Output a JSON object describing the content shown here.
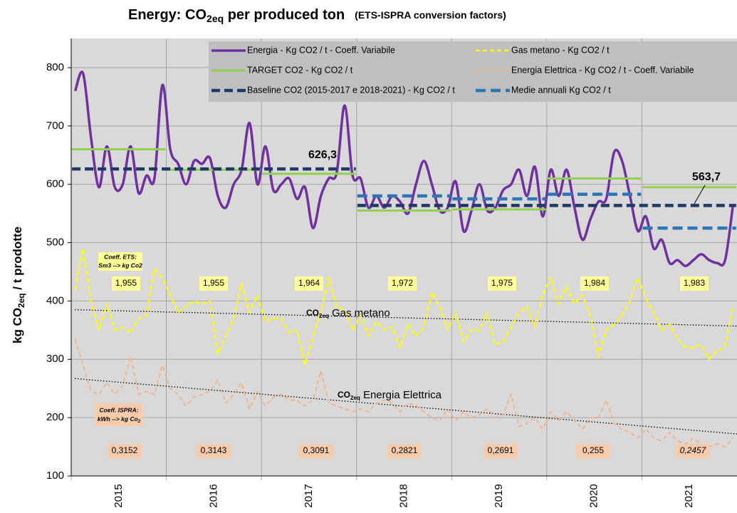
{
  "chart_data": {
    "type": "line",
    "title": [
      "Energy: CO",
      "2eq",
      " per produced ton"
    ],
    "subtitle": "(ETS-ISPRA conversion factors)",
    "y_label": [
      "kg CO",
      "2eq",
      " / t prodotte"
    ],
    "categories": [
      null,
      null,
      null,
      null,
      null,
      null,
      "2015",
      null,
      null,
      null,
      null,
      null,
      null,
      null,
      null,
      null,
      null,
      null,
      "2016",
      null,
      null,
      null,
      null,
      null,
      null,
      null,
      null,
      null,
      null,
      null,
      "2017",
      null,
      null,
      null,
      null,
      null,
      null,
      null,
      null,
      null,
      null,
      null,
      "2018",
      null,
      null,
      null,
      null,
      null,
      null,
      null,
      null,
      null,
      null,
      null,
      "2019",
      null,
      null,
      null,
      null,
      null,
      null,
      null,
      null,
      null,
      null,
      null,
      "2020",
      null,
      null,
      null,
      null,
      null,
      null,
      null,
      null,
      null,
      null,
      null,
      "2021",
      null,
      null,
      null,
      null,
      null
    ],
    "ylim": [
      100,
      850
    ],
    "yticks": [
      100,
      200,
      300,
      400,
      500,
      600,
      700,
      800
    ],
    "grid": true,
    "series": [
      {
        "name": "Energia - Kg CO2 / t - Coeff. Variabile",
        "color": "#7030a0",
        "width": 3.5,
        "smooth": true,
        "values": [
          760,
          790,
          680,
          595,
          665,
          595,
          600,
          665,
          585,
          615,
          610,
          770,
          660,
          635,
          600,
          640,
          635,
          645,
          580,
          560,
          600,
          625,
          705,
          600,
          665,
          590,
          600,
          610,
          575,
          595,
          525,
          580,
          610,
          620,
          735,
          615,
          610,
          560,
          580,
          560,
          580,
          570,
          550,
          600,
          640,
          600,
          555,
          560,
          605,
          520,
          555,
          600,
          555,
          560,
          590,
          600,
          625,
          580,
          630,
          545,
          625,
          580,
          625,
          560,
          505,
          540,
          570,
          575,
          655,
          640,
          580,
          520,
          545,
          490,
          505,
          465,
          470,
          460,
          470,
          480,
          470,
          465,
          470,
          565
        ]
      },
      {
        "name": "Gas metano - Kg CO2 / t",
        "color": "#ffff00",
        "width": 2.5,
        "dash": "6,4",
        "values": [
          420,
          490,
          400,
          350,
          395,
          350,
          355,
          345,
          370,
          375,
          455,
          440,
          410,
          380,
          390,
          400,
          395,
          400,
          310,
          340,
          370,
          430,
          380,
          410,
          365,
          370,
          370,
          345,
          350,
          290,
          340,
          380,
          440,
          390,
          385,
          350,
          375,
          340,
          365,
          350,
          355,
          320,
          360,
          340,
          355,
          415,
          390,
          350,
          380,
          330,
          350,
          350,
          380,
          325,
          330,
          355,
          380,
          390,
          355,
          410,
          440,
          395,
          425,
          395,
          410,
          375,
          305,
          350,
          360,
          375,
          400,
          440,
          405,
          380,
          350,
          360,
          335,
          320,
          320,
          325,
          300,
          315,
          320,
          390
        ]
      },
      {
        "name": "TARGET CO2 - Kg CO2 / t",
        "color": "#92d050",
        "width": 3,
        "style": "levels",
        "values": [
          660,
          660,
          660,
          660,
          660,
          660,
          660,
          660,
          660,
          660,
          660,
          660,
          625,
          625,
          625,
          625,
          625,
          625,
          625,
          625,
          625,
          625,
          625,
          625,
          618,
          618,
          618,
          618,
          618,
          618,
          618,
          618,
          618,
          618,
          618,
          618,
          555,
          555,
          555,
          555,
          555,
          555,
          555,
          555,
          555,
          555,
          555,
          555,
          557,
          557,
          557,
          557,
          557,
          557,
          557,
          557,
          557,
          557,
          557,
          557,
          610,
          610,
          610,
          610,
          610,
          610,
          610,
          610,
          610,
          610,
          610,
          610,
          595,
          595,
          595,
          595,
          595,
          595,
          595,
          595,
          595,
          595,
          595,
          595
        ]
      },
      {
        "name": "Energia Elettrica - Kg CO2 / t -  Coeff. Variabile",
        "color": "#f4b183",
        "width": 1.8,
        "dash": "6,4",
        "values": [
          335,
          290,
          245,
          240,
          260,
          240,
          255,
          305,
          240,
          245,
          240,
          290,
          250,
          240,
          220,
          235,
          240,
          245,
          265,
          225,
          240,
          260,
          215,
          245,
          220,
          235,
          240,
          230,
          230,
          220,
          230,
          280,
          225,
          220,
          215,
          210,
          215,
          210,
          225,
          230,
          225,
          210,
          225,
          220,
          210,
          200,
          195,
          215,
          195,
          210,
          200,
          205,
          215,
          200,
          205,
          240,
          185,
          190,
          200,
          180,
          210,
          195,
          210,
          195,
          180,
          200,
          200,
          230,
          190,
          180,
          175,
          165,
          180,
          165,
          160,
          175,
          160,
          155,
          165,
          155,
          150,
          155,
          150,
          165
        ]
      },
      {
        "name": "Baseline CO2 (2015-2017 e 2018-2021) - Kg CO2 / t",
        "color": "#1f3864",
        "width": 4.5,
        "dash": "12,6",
        "style": "levels",
        "values": [
          626.3,
          626.3,
          626.3,
          626.3,
          626.3,
          626.3,
          626.3,
          626.3,
          626.3,
          626.3,
          626.3,
          626.3,
          626.3,
          626.3,
          626.3,
          626.3,
          626.3,
          626.3,
          626.3,
          626.3,
          626.3,
          626.3,
          626.3,
          626.3,
          626.3,
          626.3,
          626.3,
          626.3,
          626.3,
          626.3,
          626.3,
          626.3,
          626.3,
          626.3,
          626.3,
          626.3,
          563.7,
          563.7,
          563.7,
          563.7,
          563.7,
          563.7,
          563.7,
          563.7,
          563.7,
          563.7,
          563.7,
          563.7,
          563.7,
          563.7,
          563.7,
          563.7,
          563.7,
          563.7,
          563.7,
          563.7,
          563.7,
          563.7,
          563.7,
          563.7,
          563.7,
          563.7,
          563.7,
          563.7,
          563.7,
          563.7,
          563.7,
          563.7,
          563.7,
          563.7,
          563.7,
          563.7,
          563.7,
          563.7,
          563.7,
          563.7,
          563.7,
          563.7,
          563.7,
          563.7,
          563.7,
          563.7,
          563.7,
          563.7
        ]
      },
      {
        "name": "Medie annuali Kg CO2 / t",
        "color": "#2e75b6",
        "width": 4.5,
        "dash": "14,7",
        "style": "levels",
        "values": [
          null,
          null,
          null,
          null,
          null,
          null,
          null,
          null,
          null,
          null,
          null,
          null,
          null,
          null,
          null,
          null,
          null,
          null,
          null,
          null,
          null,
          null,
          null,
          null,
          null,
          null,
          null,
          null,
          null,
          null,
          null,
          null,
          null,
          null,
          null,
          null,
          580,
          580,
          580,
          580,
          580,
          580,
          580,
          580,
          580,
          580,
          580,
          580,
          575,
          575,
          575,
          575,
          575,
          575,
          575,
          575,
          575,
          575,
          575,
          575,
          583,
          583,
          583,
          583,
          583,
          583,
          583,
          583,
          583,
          583,
          583,
          583,
          525,
          525,
          525,
          525,
          525,
          525,
          525,
          525,
          525,
          525,
          525,
          525
        ]
      }
    ],
    "trendlines": [
      {
        "values": [
          385,
          357
        ]
      },
      {
        "values": [
          267,
          172
        ]
      }
    ],
    "baseline_labels": [
      "626,3",
      "563,7"
    ],
    "trend_labels": [
      [
        "CO",
        "2eq",
        " Gas metano"
      ],
      [
        "CO",
        "2eq",
        " Energia Elettrica"
      ]
    ],
    "ets_note": [
      "Coeff. ETS:",
      "Sm3 --> kg Co2"
    ],
    "ets_coefficients": [
      "1,955",
      "1,955",
      "1,964",
      "1,972",
      "1,975",
      "1,984",
      "1,983"
    ],
    "ispra_note": [
      "Coeff. ISPRA:",
      "kWh --> kg Co",
      "2"
    ],
    "ispra_coefficients": [
      "0,3152",
      "0,3143",
      "0,3091",
      "0,2821",
      "0,2691",
      "0,255",
      "0,2457"
    ]
  }
}
